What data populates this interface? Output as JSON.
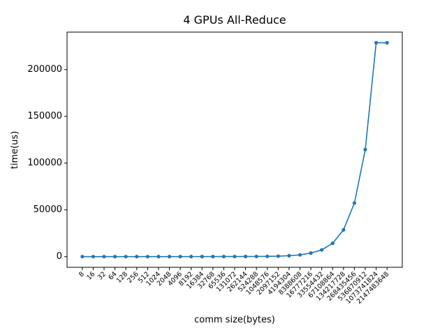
{
  "chart_data": {
    "type": "line",
    "title": "4 GPUs All-Reduce",
    "x_label": "comm size(bytes)",
    "y_label": "time(us)",
    "categories": [
      "8",
      "16",
      "32",
      "64",
      "128",
      "256",
      "512",
      "1024",
      "2048",
      "4096",
      "8192",
      "16384",
      "32768",
      "65536",
      "131072",
      "262144",
      "524288",
      "1048576",
      "2097152",
      "4194304",
      "8388608",
      "16777216",
      "33554432",
      "67108864",
      "134217728",
      "268435456",
      "536870912",
      "1073741824",
      "2147483648"
    ],
    "series": [
      {
        "name": "time(us)",
        "color": "#1f77b4",
        "values": [
          40,
          40,
          40,
          40,
          40,
          45,
          45,
          50,
          55,
          60,
          65,
          75,
          85,
          100,
          120,
          150,
          200,
          300,
          500,
          1000,
          1900,
          3800,
          7200,
          14300,
          28600,
          57300,
          114500,
          228700,
          228700
        ]
      }
    ],
    "ylim": [
      -11400,
      240100
    ],
    "yticks": [
      0,
      50000,
      100000,
      150000,
      200000
    ],
    "grid": false
  }
}
